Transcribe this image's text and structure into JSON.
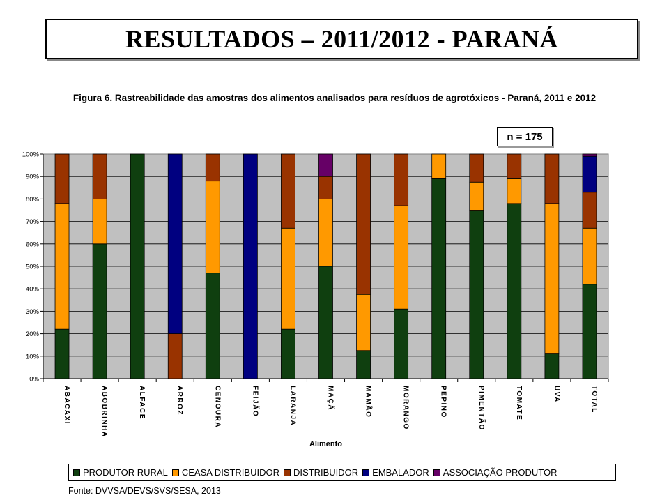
{
  "slide": {
    "title": "RESULTADOS – 2011/2012 - PARANÁ",
    "source": "Fonte: DVVSA/DEVS/SVS/SESA, 2013"
  },
  "chart_data": {
    "type": "bar",
    "stacked": true,
    "title": "Figura 6. Rastreabilidade das amostras dos alimentos analisados para resíduos de agrotóxicos - Paraná, 2011 e 2012",
    "annotation": "n = 175",
    "xlabel": "Alimento",
    "ylabel": "",
    "ylim": [
      0,
      100
    ],
    "yticks": [
      "0%",
      "10%",
      "20%",
      "30%",
      "40%",
      "50%",
      "60%",
      "70%",
      "80%",
      "90%",
      "100%"
    ],
    "grid": true,
    "legend_position": "bottom",
    "categories": [
      "ABACAXI",
      "ABOBRINHA",
      "ALFACE",
      "ARROZ",
      "CENOURA",
      "FEIJÃO",
      "LARANJA",
      "MAÇÃ",
      "MAMÃO",
      "MORANGO",
      "PEPINO",
      "PIMENTÃO",
      "TOMATE",
      "UVA",
      "TOTAL"
    ],
    "series": [
      {
        "name": "PRODUTOR RURAL",
        "color": "#0f3f0f",
        "values": [
          22,
          60,
          100,
          0,
          47,
          0,
          22,
          50,
          12.5,
          31,
          89,
          75,
          78,
          11,
          42
        ]
      },
      {
        "name": "CEASA DISTRIBUIDOR",
        "color": "#ff9900",
        "values": [
          56,
          20,
          0,
          0,
          41,
          0,
          45,
          30,
          25,
          46,
          11,
          12.5,
          11,
          67,
          25
        ]
      },
      {
        "name": "DISTRIBUIDOR",
        "color": "#993300",
        "values": [
          22,
          20,
          0,
          20,
          12,
          0,
          33,
          10,
          62.5,
          23,
          0,
          12.5,
          11,
          22,
          16
        ]
      },
      {
        "name": "EMBALADOR",
        "color": "#000080",
        "values": [
          0,
          0,
          0,
          80,
          0,
          100,
          0,
          0,
          0,
          0,
          0,
          0,
          0,
          0,
          16
        ]
      },
      {
        "name": "ASSOCIAÇÃO PRODUTOR",
        "color": "#660066",
        "values": [
          0,
          0,
          0,
          0,
          0,
          0,
          0,
          10,
          0,
          0,
          0,
          0,
          0,
          0,
          1
        ]
      }
    ],
    "plot_background": "#c0c0c0"
  }
}
